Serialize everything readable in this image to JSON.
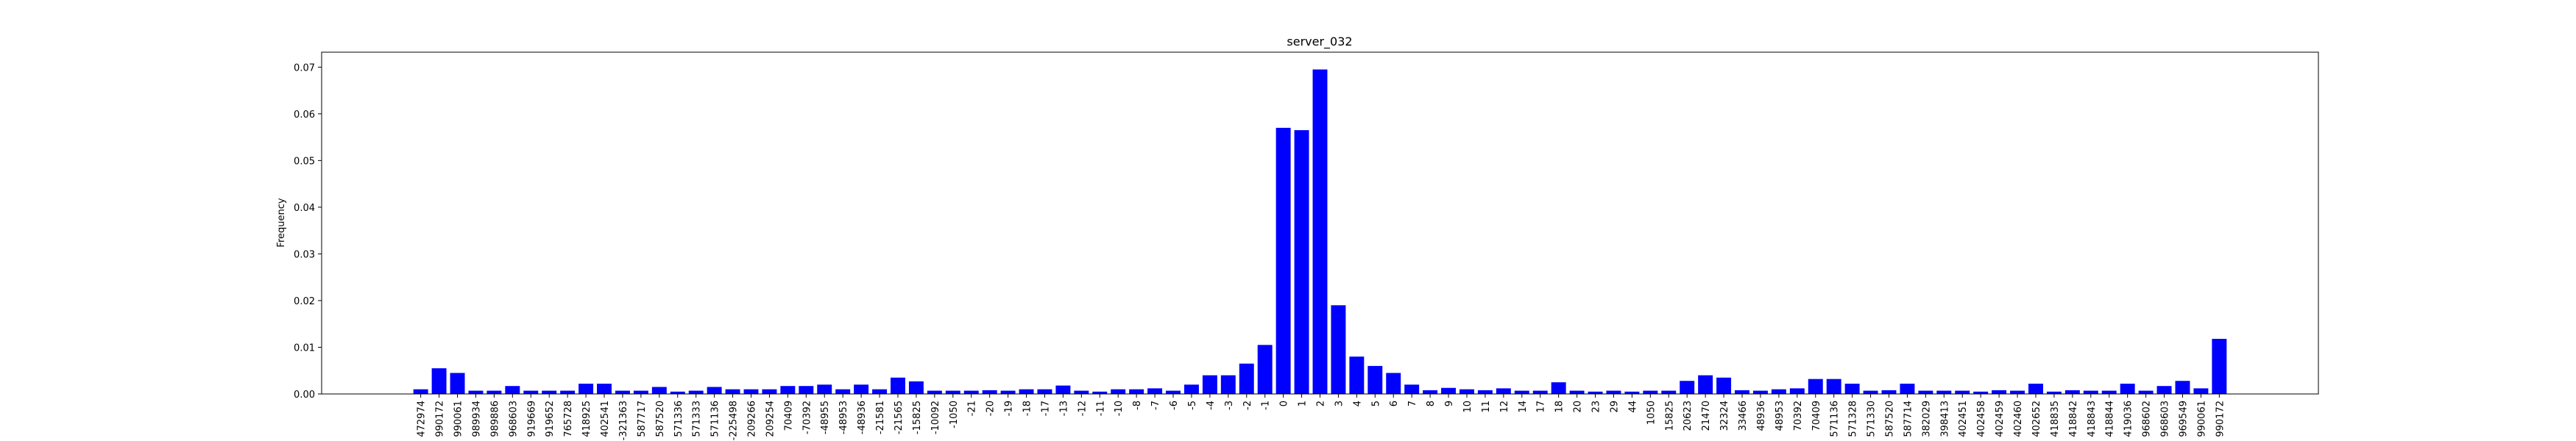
{
  "chart_data": {
    "type": "bar",
    "title": "server_032",
    "ylabel": "Frequency",
    "color": "#0000ff",
    "categories": [
      "472974",
      "990172",
      "990061",
      "989934",
      "989886",
      "968603",
      "919669",
      "919652",
      "765728",
      "418925",
      "402541",
      "-321363",
      "587717",
      "587520",
      "571336",
      "571333",
      "571136",
      "-225498",
      "209266",
      "209254",
      "70409",
      "-70392",
      "-48955",
      "-48953",
      "-48936",
      "-21581",
      "-21565",
      "-15825",
      "-10092",
      "-1050",
      "-21",
      "-20",
      "-19",
      "-18",
      "-17",
      "-13",
      "-12",
      "-11",
      "-10",
      "-8",
      "-7",
      "-6",
      "-5",
      "-4",
      "-3",
      "-2",
      "-1",
      "0",
      "1",
      "2",
      "3",
      "4",
      "5",
      "6",
      "7",
      "8",
      "9",
      "10",
      "11",
      "12",
      "14",
      "17",
      "18",
      "20",
      "23",
      "29",
      "44",
      "1050",
      "15825",
      "20623",
      "21470",
      "32324",
      "33466",
      "48936",
      "48953",
      "70392",
      "70409",
      "571136",
      "571328",
      "571330",
      "587520",
      "587714",
      "382029",
      "398413",
      "402451",
      "402458",
      "402459",
      "402460",
      "402652",
      "418835",
      "418842",
      "418843",
      "418844",
      "419036",
      "968602",
      "968603",
      "969549",
      "990061",
      "990172"
    ],
    "values": [
      0.001,
      0.0055,
      0.0045,
      0.0007,
      0.0007,
      0.0017,
      0.0007,
      0.0007,
      0.0007,
      0.0022,
      0.0022,
      0.0007,
      0.0007,
      0.0015,
      0.0005,
      0.0007,
      0.0015,
      0.001,
      0.001,
      0.001,
      0.0017,
      0.0017,
      0.002,
      0.001,
      0.002,
      0.001,
      0.0035,
      0.0027,
      0.0007,
      0.0007,
      0.0007,
      0.0008,
      0.0007,
      0.001,
      0.001,
      0.0018,
      0.0007,
      0.0005,
      0.001,
      0.001,
      0.0012,
      0.0007,
      0.002,
      0.004,
      0.004,
      0.0065,
      0.0105,
      0.057,
      0.0565,
      0.0695,
      0.019,
      0.008,
      0.006,
      0.0045,
      0.002,
      0.0008,
      0.0013,
      0.001,
      0.0008,
      0.0012,
      0.0007,
      0.0007,
      0.0025,
      0.0007,
      0.0005,
      0.0007,
      0.0005,
      0.0007,
      0.0007,
      0.0028,
      0.004,
      0.0035,
      0.0008,
      0.0007,
      0.001,
      0.0012,
      0.0032,
      0.0032,
      0.0022,
      0.0007,
      0.0008,
      0.0022,
      0.0007,
      0.0007,
      0.0007,
      0.0005,
      0.0008,
      0.0007,
      0.0022,
      0.0005,
      0.0008,
      0.0007,
      0.0007,
      0.0022,
      0.0007,
      0.0017,
      0.0028,
      0.0012,
      0.0118
    ],
    "ylim": [
      0,
      0.0732
    ],
    "yticks": [
      {
        "value": 0,
        "label": "0.00"
      },
      {
        "value": 0.01,
        "label": "0.01"
      },
      {
        "value": 0.02,
        "label": "0.02"
      },
      {
        "value": 0.03,
        "label": "0.03"
      },
      {
        "value": 0.04,
        "label": "0.04"
      },
      {
        "value": 0.05,
        "label": "0.05"
      },
      {
        "value": 0.06,
        "label": "0.06"
      },
      {
        "value": 0.07,
        "label": "0.07"
      }
    ]
  }
}
